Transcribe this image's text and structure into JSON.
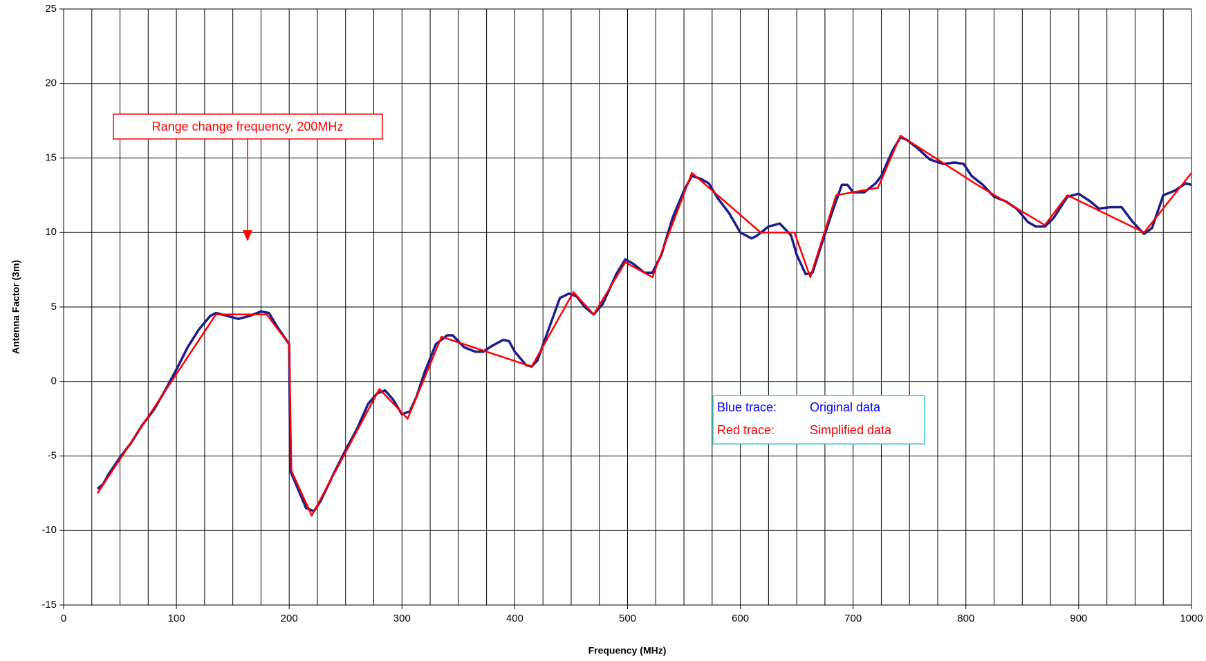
{
  "chart_data": {
    "type": "line",
    "x_label": "Frequency (MHz)",
    "y_label": "Antenna Factor (3m)",
    "xlim": [
      0,
      1000
    ],
    "xticks": [
      0,
      100,
      200,
      300,
      400,
      500,
      600,
      700,
      800,
      900,
      1000
    ],
    "xgrid": [
      0,
      25,
      50,
      75,
      100,
      125,
      150,
      175,
      200,
      225,
      250,
      275,
      300,
      325,
      350,
      375,
      400,
      425,
      450,
      475,
      500,
      525,
      550,
      575,
      600,
      625,
      650,
      675,
      700,
      725,
      750,
      775,
      800,
      825,
      850,
      875,
      900,
      925,
      950,
      975,
      1000
    ],
    "ylim": [
      -15,
      25
    ],
    "yticks": [
      -15,
      -10,
      -5,
      0,
      5,
      10,
      15,
      20,
      25
    ],
    "grid": true,
    "annotation": "Range change frequency, 200MHz",
    "legend_labels": [
      "Blue trace:",
      "Red trace:"
    ],
    "series": [
      {
        "name": "Original data",
        "color": "#1c1c8a",
        "legend_color": "#0000ff",
        "x": [
          30,
          35,
          40,
          50,
          60,
          70,
          80,
          90,
          100,
          110,
          120,
          130,
          135,
          145,
          155,
          165,
          175,
          182,
          190,
          200,
          201,
          210,
          215,
          222,
          228,
          240,
          250,
          260,
          270,
          278,
          285,
          292,
          300,
          307,
          313,
          320,
          330,
          340,
          345,
          355,
          365,
          372,
          380,
          390,
          395,
          400,
          410,
          415,
          420,
          430,
          440,
          448,
          455,
          462,
          470,
          478,
          490,
          498,
          505,
          515,
          522,
          530,
          540,
          550,
          557,
          565,
          572,
          580,
          590,
          600,
          610,
          615,
          625,
          635,
          645,
          650,
          658,
          664,
          672,
          682,
          690,
          695,
          700,
          710,
          720,
          725,
          735,
          742,
          748,
          758,
          768,
          780,
          790,
          798,
          805,
          815,
          825,
          835,
          845,
          855,
          862,
          870,
          878,
          890,
          900,
          910,
          918,
          928,
          938,
          948,
          958,
          965,
          975,
          985,
          995,
          1000
        ],
        "values": [
          -7.2,
          -6.9,
          -6.2,
          -5.1,
          -4.1,
          -2.9,
          -1.9,
          -0.6,
          0.8,
          2.3,
          3.5,
          4.4,
          4.6,
          4.4,
          4.2,
          4.4,
          4.7,
          4.6,
          3.6,
          2.5,
          -6,
          -7.6,
          -8.5,
          -8.7,
          -8,
          -6.1,
          -4.6,
          -3.2,
          -1.5,
          -0.8,
          -0.6,
          -1.2,
          -2.2,
          -2,
          -1,
          0.6,
          2.5,
          3.1,
          3.1,
          2.3,
          2,
          2,
          2.4,
          2.8,
          2.7,
          2,
          1.1,
          1,
          1.4,
          3.5,
          5.6,
          5.9,
          5.7,
          5,
          4.5,
          5.2,
          7.2,
          8.2,
          7.9,
          7.3,
          7.3,
          8.5,
          11,
          12.8,
          13.8,
          13.6,
          13.3,
          12.3,
          11.3,
          10,
          9.6,
          9.8,
          10.4,
          10.6,
          9.8,
          8.5,
          7.2,
          7.3,
          9.2,
          11.5,
          13.2,
          13.2,
          12.7,
          12.7,
          13.3,
          13.8,
          15.5,
          16.4,
          16.2,
          15.6,
          14.9,
          14.6,
          14.7,
          14.6,
          13.8,
          13.2,
          12.4,
          12.1,
          11.6,
          10.7,
          10.4,
          10.4,
          11,
          12.4,
          12.6,
          12.1,
          11.6,
          11.7,
          11.7,
          10.7,
          9.9,
          10.3,
          12.5,
          12.8,
          13.3,
          13.2
        ]
      },
      {
        "name": "Simplified data",
        "color": "#ff0000",
        "legend_color": "#ff0000",
        "x": [
          30,
          135,
          180,
          200,
          202,
          220,
          280,
          305,
          335,
          415,
          452,
          470,
          498,
          522,
          557,
          618,
          648,
          662,
          685,
          722,
          742,
          810,
          870,
          890,
          958,
          1000
        ],
        "values": [
          -7.5,
          4.5,
          4.5,
          2.5,
          -6,
          -9,
          -0.5,
          -2.5,
          3,
          1,
          6,
          4.5,
          8,
          7,
          14,
          10,
          10,
          7,
          12.5,
          13,
          16.5,
          13.2,
          10.5,
          12.5,
          10,
          14
        ]
      }
    ]
  }
}
